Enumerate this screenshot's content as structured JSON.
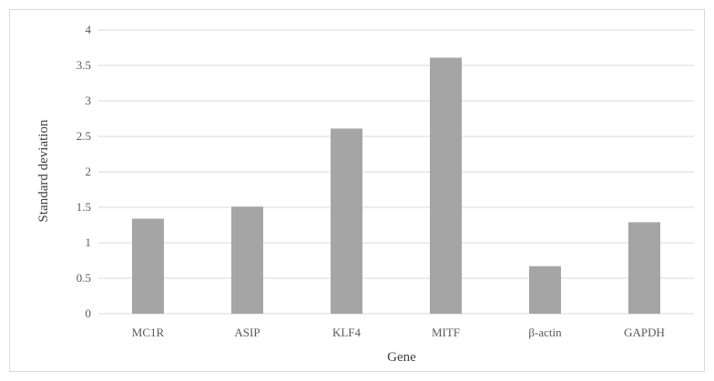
{
  "chart_data": {
    "type": "bar",
    "title": "",
    "xlabel": "Gene",
    "ylabel": "Standard deviation",
    "categories": [
      "MC1R",
      "ASIP",
      "KLF4",
      "MITF",
      "β-actin",
      "GAPDH"
    ],
    "values": [
      1.34,
      1.51,
      2.61,
      3.61,
      0.67,
      1.29
    ],
    "ylim": [
      0,
      4
    ],
    "yticks": [
      "0",
      "0.5",
      "1",
      "1.5",
      "2",
      "2.5",
      "3",
      "3.5",
      "4"
    ],
    "grid": true,
    "legend": "none",
    "bar_color": "#a5a5a5",
    "grid_color": "#d9d9d9"
  }
}
